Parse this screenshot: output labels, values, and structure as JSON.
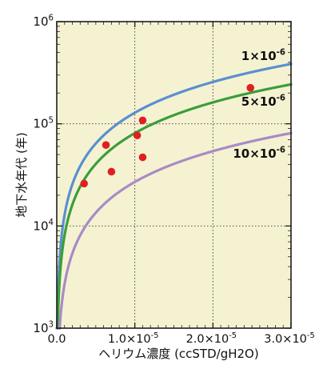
{
  "chart_data": {
    "type": "line",
    "xlabel": "ヘリウム濃度 (ccSTD/gH2O)",
    "ylabel": "地下水年代 (年)",
    "x_scale": "linear",
    "y_scale": "log",
    "xlim": [
      0,
      3e-05
    ],
    "ylim": [
      1000,
      1000000
    ],
    "grid": true,
    "grid_style": "dotted",
    "background": "#f5f2d2",
    "x_ticks": [
      {
        "value": 0,
        "label": "0.0"
      },
      {
        "value": 1e-05,
        "base": "1.0×10",
        "exp": "-5"
      },
      {
        "value": 2e-05,
        "base": "2.0×10",
        "exp": "-5"
      },
      {
        "value": 3e-05,
        "base": "3.0×10",
        "exp": "-5"
      }
    ],
    "y_ticks": [
      {
        "value": 1000,
        "base": "10",
        "exp": "3"
      },
      {
        "value": 10000,
        "base": "10",
        "exp": "4"
      },
      {
        "value": 100000,
        "base": "10",
        "exp": "5"
      },
      {
        "value": 1000000,
        "base": "10",
        "exp": "6"
      }
    ],
    "series": [
      {
        "name": "1×10-6",
        "label_base": "1×10",
        "label_exp": "-6",
        "color": "#5b8fcf",
        "x": [
          0,
          1e-06,
          2e-06,
          3e-06,
          5e-06,
          8e-06,
          1e-05,
          1.5e-05,
          2e-05,
          2.5e-05,
          3e-05
        ],
        "y": [
          1000,
          13000,
          26000,
          39000,
          64000,
          103000,
          128000,
          192000,
          257000,
          321000,
          385000
        ]
      },
      {
        "name": "5×10-6",
        "label_base": "5×10",
        "label_exp": "-6",
        "color": "#3a9e3a",
        "x": [
          0,
          1e-06,
          2e-06,
          3e-06,
          5e-06,
          8e-06,
          1e-05,
          1.5e-05,
          2e-05,
          2.5e-05,
          3e-05
        ],
        "y": [
          1000,
          8100,
          16200,
          24300,
          40500,
          64800,
          81000,
          121500,
          162000,
          202500,
          243000
        ]
      },
      {
        "name": "10×10-6",
        "label_base": "10×10",
        "label_exp": "-6",
        "color": "#a98bc6",
        "x": [
          0,
          1e-06,
          2e-06,
          3e-06,
          5e-06,
          8e-06,
          1e-05,
          1.5e-05,
          2e-05,
          2.5e-05,
          3e-05
        ],
        "y": [
          1000,
          2700,
          5400,
          8100,
          13500,
          21600,
          27000,
          40500,
          54000,
          67500,
          81000
        ]
      }
    ],
    "points": {
      "color": "#e02020",
      "x": [
        3.5e-06,
        6.3e-06,
        7e-06,
        1.03e-05,
        1.1e-05,
        1.1e-05,
        2.48e-05
      ],
      "y": [
        26000,
        62000,
        34000,
        77000,
        108000,
        47000,
        225000
      ]
    }
  }
}
